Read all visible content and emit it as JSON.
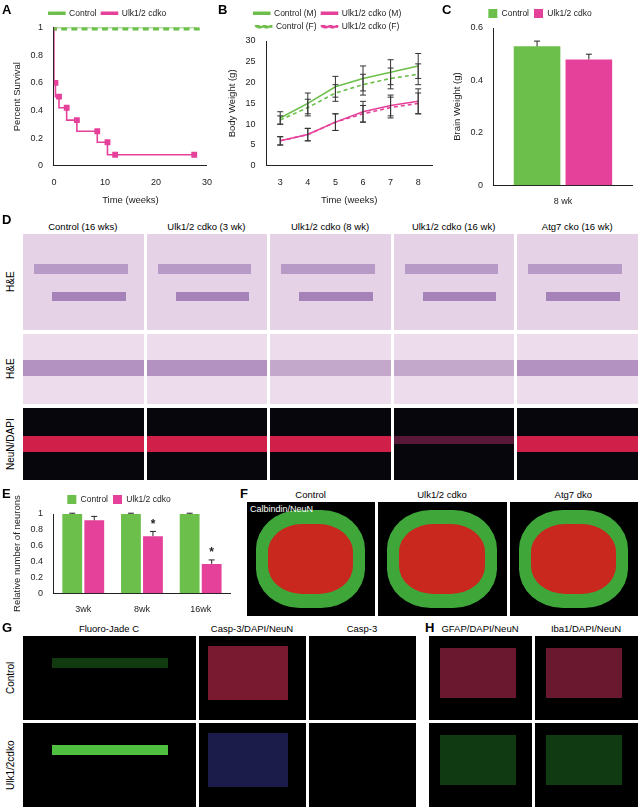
{
  "chart_data": [
    {
      "panel": "A",
      "type": "line",
      "x_label": "Time (weeks)",
      "y_label": "Percent Survival",
      "xlim": [
        0,
        30
      ],
      "xticks": [
        0,
        10,
        20,
        30
      ],
      "ylim": [
        0,
        1
      ],
      "yticks": [
        0,
        0.2,
        0.4,
        0.6,
        0.8,
        1
      ],
      "grid": false,
      "legend": "top",
      "series": [
        {
          "name": "Control",
          "color": "#6cbf4a",
          "marker": "square",
          "line_style": "solid",
          "x": [
            0,
            2,
            4,
            6,
            8,
            10,
            12,
            14,
            16,
            18,
            20,
            22,
            24,
            26,
            28
          ],
          "values": [
            1,
            1,
            1,
            1,
            1,
            1,
            1,
            1,
            1,
            1,
            1,
            1,
            1,
            1,
            1
          ]
        },
        {
          "name": "Ulk1/2 cdko",
          "color": "#e5409a",
          "marker": "square",
          "line_style": "step",
          "x": [
            0,
            0.3,
            1,
            2.5,
            4.5,
            8.5,
            10.5,
            12,
            27.5
          ],
          "values": [
            1,
            0.6,
            0.5,
            0.42,
            0.33,
            0.25,
            0.17,
            0.08,
            0.08
          ]
        }
      ]
    },
    {
      "panel": "B",
      "type": "line",
      "x_label": "Time (weeks)",
      "y_label": "Body Weight (g)",
      "x": [
        3,
        4,
        5,
        6,
        7,
        8
      ],
      "xlim": [
        2.5,
        8.5
      ],
      "xticks": [
        3,
        4,
        5,
        6,
        7,
        8
      ],
      "ylim": [
        0,
        30
      ],
      "yticks": [
        0,
        5,
        10,
        15,
        20,
        25,
        30
      ],
      "grid": false,
      "legend": "top",
      "series": [
        {
          "name": "Control (M)",
          "color": "#6cbf4a",
          "marker": "none",
          "line_style": "solid",
          "values": [
            11.5,
            15,
            19,
            21,
            22.5,
            24
          ],
          "errors": [
            1.5,
            2.5,
            2.5,
            3,
            3,
            3
          ]
        },
        {
          "name": "Ulk1/2 cdko (M)",
          "color": "#e5409a",
          "marker": "none",
          "line_style": "solid",
          "values": [
            6,
            7.5,
            10.5,
            13,
            14.5,
            15.5
          ],
          "errors": [
            1,
            1.5,
            2,
            2.5,
            2.5,
            3
          ]
        },
        {
          "name": "Control (F)",
          "color": "#6cbf4a",
          "marker": "none",
          "line_style": "dashed",
          "values": [
            11,
            14,
            17.5,
            19.5,
            21,
            22
          ],
          "errors": [
            1,
            2,
            2,
            2.5,
            2.5,
            2.5
          ]
        },
        {
          "name": "Ulk1/2 cdko (F)",
          "color": "#e5409a",
          "marker": "none",
          "line_style": "dashed",
          "values": [
            6,
            7.5,
            10.5,
            12.5,
            14,
            15
          ],
          "errors": [
            1,
            1.5,
            2,
            2,
            2.5,
            2.5
          ]
        }
      ]
    },
    {
      "panel": "C",
      "type": "bar",
      "y_label": "Brain Weight (g)",
      "categories": [
        "8 wk"
      ],
      "ylim": [
        0,
        0.6
      ],
      "yticks": [
        0,
        0.2,
        0.4,
        0.6
      ],
      "grid": false,
      "legend": "top",
      "series": [
        {
          "name": "Control",
          "color": "#6cbf4a",
          "values": [
            0.53
          ],
          "errors": [
            0.02
          ]
        },
        {
          "name": "Ulk1/2 cdko",
          "color": "#e5409a",
          "values": [
            0.48
          ],
          "errors": [
            0.02
          ]
        }
      ]
    },
    {
      "panel": "E",
      "type": "bar",
      "y_label": "Relative number of neurons",
      "categories": [
        "3wk",
        "8wk",
        "16wk"
      ],
      "ylim": [
        0,
        1
      ],
      "yticks": [
        0,
        0.2,
        0.4,
        0.6,
        0.8,
        1
      ],
      "grid": false,
      "legend": "top",
      "series": [
        {
          "name": "Control",
          "color": "#6cbf4a",
          "values": [
            1,
            1,
            1
          ],
          "errors": [
            0.01,
            0.01,
            0.01
          ]
        },
        {
          "name": "Ulk1/2 cdko",
          "color": "#e5409a",
          "values": [
            0.92,
            0.72,
            0.37
          ],
          "errors": [
            0.05,
            0.06,
            0.05
          ]
        }
      ],
      "annotations": [
        {
          "category": "8wk",
          "series": "Ulk1/2 cdko",
          "text": "*"
        },
        {
          "category": "16wk",
          "series": "Ulk1/2 cdko",
          "text": "*"
        }
      ]
    }
  ],
  "image_panels": [
    {
      "panel": "D",
      "columns": [
        "Control (16 wks)",
        "Ulk1/2 cdko (3 wk)",
        "Ulk1/2 cdko (8 wk)",
        "Ulk1/2 cdko (16 wk)",
        "Atg7 cko (16 wk)"
      ],
      "rows": [
        "H&E",
        "H&E",
        "NeuN/DAPI"
      ]
    },
    {
      "panel": "F",
      "columns": [
        "Control",
        "Ulk1/2 cdko",
        "Atg7 dko"
      ],
      "stain": "Calbindin/NeuN"
    },
    {
      "panel": "G",
      "columns": [
        "Fluoro-Jade C",
        "Casp-3/DAPI/NeuN",
        "Casp-3"
      ],
      "rows": [
        "Control",
        "Ulk1/2cdko"
      ]
    },
    {
      "panel": "H",
      "columns": [
        "GFAP/DAPI/NeuN",
        "Iba1/DAPI/NeuN"
      ],
      "rows": [
        "Control",
        "Ulk1/2cdko"
      ]
    }
  ]
}
